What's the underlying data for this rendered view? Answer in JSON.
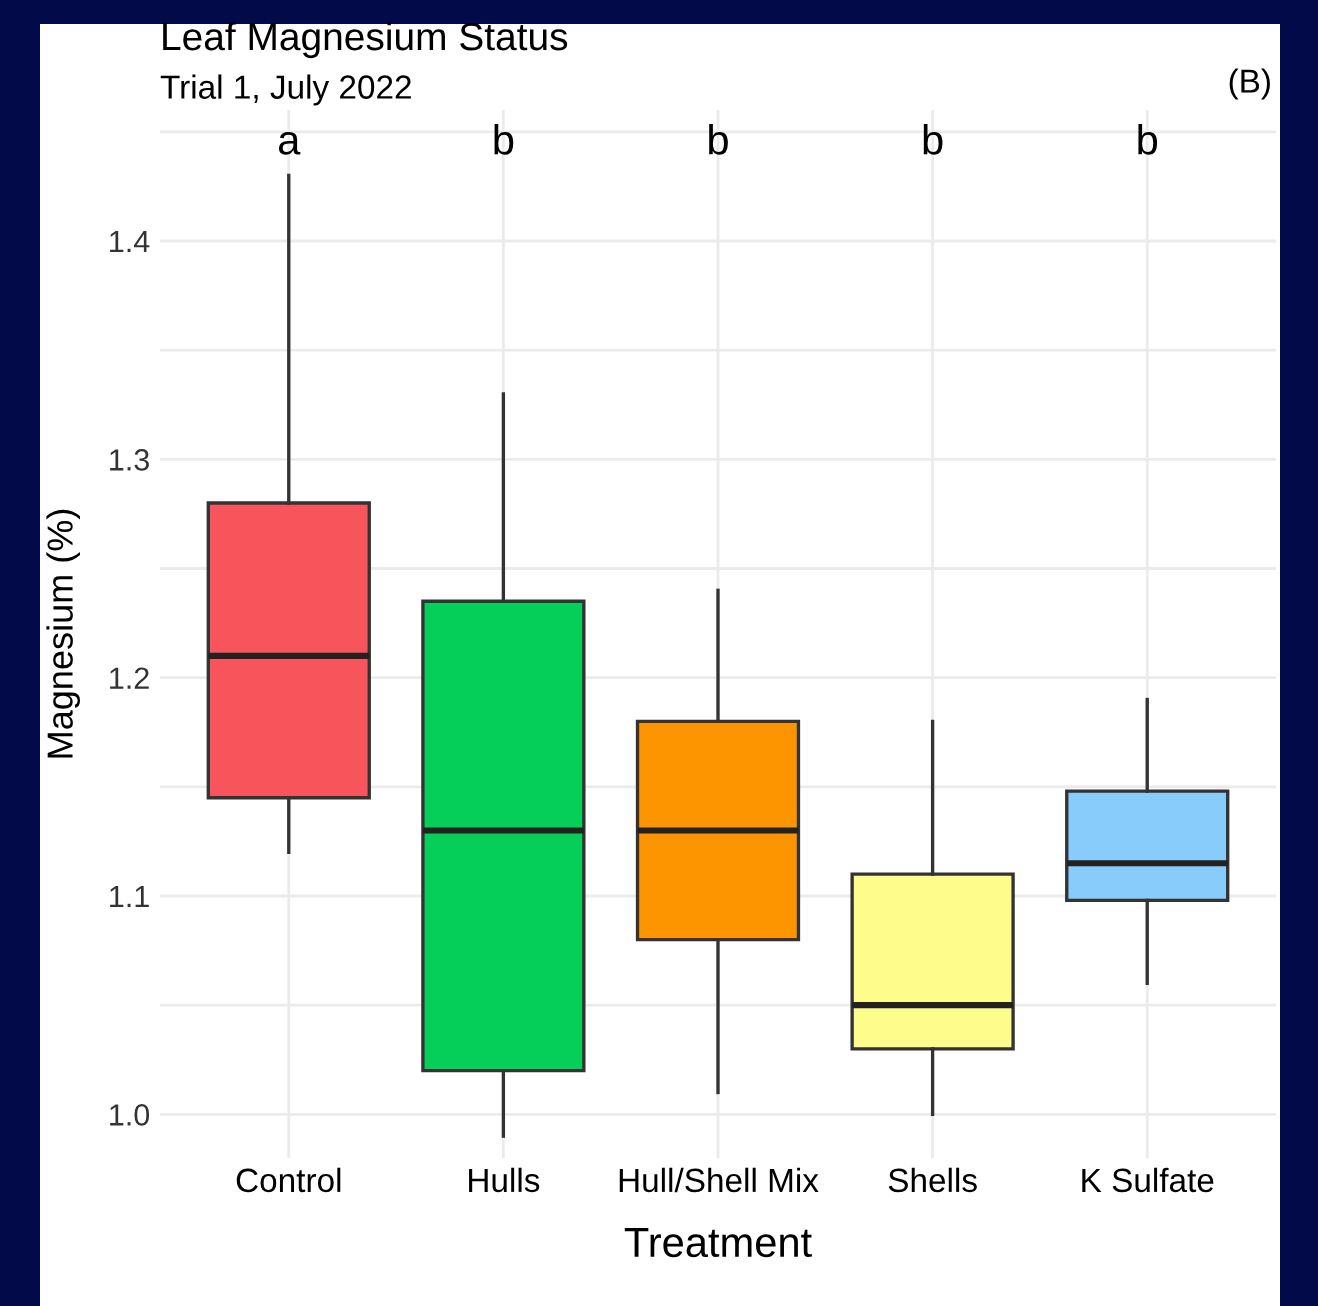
{
  "chart_data": {
    "type": "box",
    "title": "Leaf Magnesium Status",
    "subtitle": "Trial 1, July 2022",
    "xlabel": "Treatment",
    "ylabel": "Magnesium (%)",
    "categories": [
      "Control",
      "Hulls",
      "Hull/Shell Mix",
      "Shells",
      "K Sulfate"
    ],
    "colors": [
      "#f8545c",
      "#05cf58",
      "#fd9500",
      "#fefc8a",
      "#87ccfb"
    ],
    "boxes": [
      {
        "low": 1.12,
        "q1": 1.145,
        "median": 1.21,
        "q3": 1.28,
        "high": 1.43
      },
      {
        "low": 0.99,
        "q1": 1.02,
        "median": 1.13,
        "q3": 1.235,
        "high": 1.33
      },
      {
        "low": 1.01,
        "q1": 1.08,
        "median": 1.13,
        "q3": 1.18,
        "high": 1.24
      },
      {
        "low": 1.0,
        "q1": 1.03,
        "median": 1.05,
        "q3": 1.11,
        "high": 1.18
      },
      {
        "low": 1.06,
        "q1": 1.098,
        "median": 1.115,
        "q3": 1.148,
        "high": 1.19
      }
    ],
    "ylim": [
      0.98,
      1.46
    ],
    "yticks": [
      {
        "value": 1.0,
        "label": "1.0"
      },
      {
        "value": 1.05,
        "label": null
      },
      1.1,
      {
        "value": 1.15,
        "label": null
      },
      1.2,
      {
        "value": 1.25,
        "label": null
      },
      1.3,
      {
        "value": 1.35,
        "label": null
      },
      1.4,
      {
        "value": 1.45,
        "label": null
      }
    ],
    "grid": true,
    "annotations": [
      "a",
      "b",
      "b",
      "b",
      "b",
      "(B)"
    ]
  }
}
